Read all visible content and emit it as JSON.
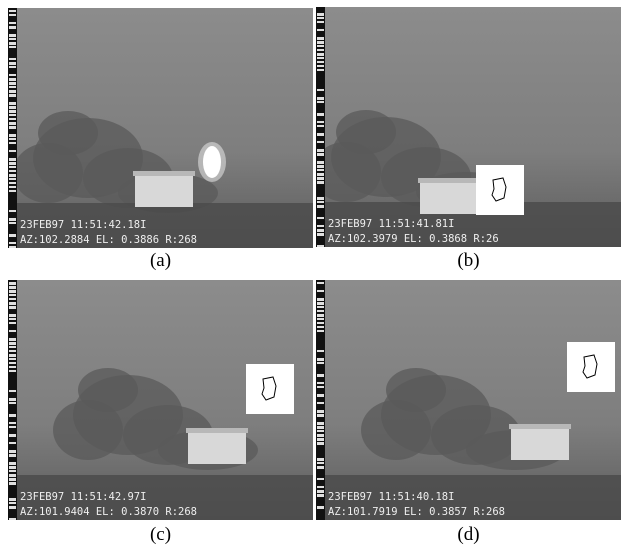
{
  "panels": [
    {
      "caption": "(a)",
      "timestamp": "23FEB97 11:51:42.18I",
      "telemetry": "AZ:102.2884 EL: 0.3886 R:268"
    },
    {
      "caption": "(b)",
      "timestamp": "23FEB97 11:51:41.81I",
      "telemetry": "AZ:102.3979 EL: 0.3868 R:26"
    },
    {
      "caption": "(c)",
      "timestamp": "23FEB97 11:51:42.97I",
      "telemetry": "AZ:101.9404 EL: 0.3870 R:268"
    },
    {
      "caption": "(d)",
      "timestamp": "23FEB97 11:51:40.18I",
      "telemetry": "AZ:101.7919 EL: 0.3857 R:268"
    }
  ]
}
